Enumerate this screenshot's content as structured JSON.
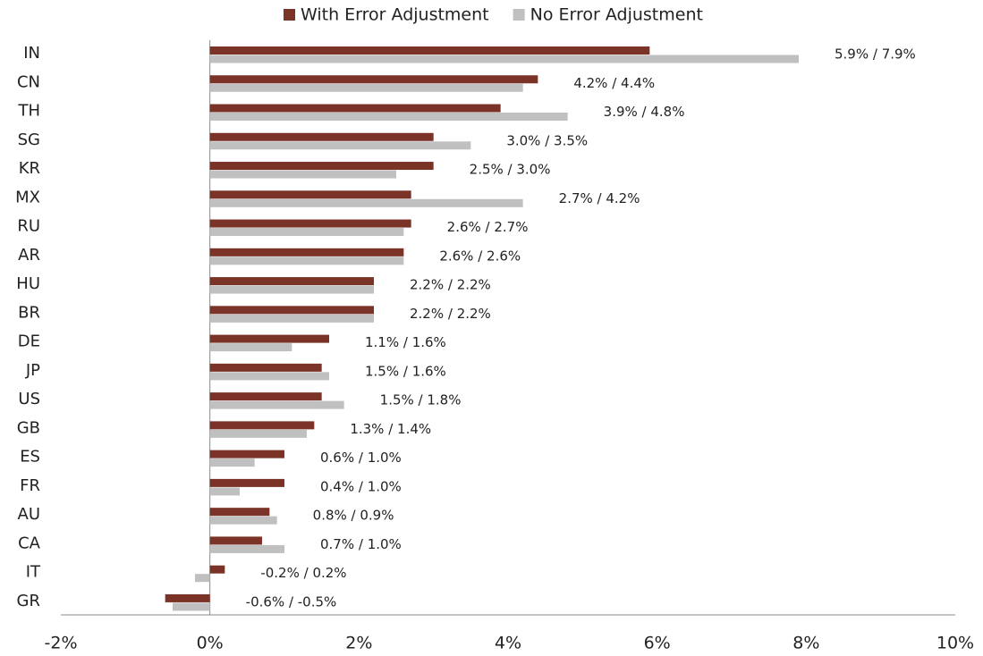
{
  "chart_data": {
    "type": "hbar",
    "categories": [
      "IN",
      "CN",
      "TH",
      "SG",
      "KR",
      "MX",
      "RU",
      "AR",
      "HU",
      "BR",
      "DE",
      "JP",
      "US",
      "GB",
      "ES",
      "FR",
      "AU",
      "CA",
      "IT",
      "GR"
    ],
    "series": [
      {
        "name": "With Error Adjustment",
        "color": "#7b3328",
        "values": [
          5.9,
          4.4,
          3.9,
          3.0,
          3.0,
          2.7,
          2.7,
          2.6,
          2.2,
          2.2,
          1.6,
          1.5,
          1.5,
          1.4,
          1.0,
          1.0,
          0.8,
          0.7,
          0.2,
          -0.6
        ]
      },
      {
        "name": "No Error Adjustment",
        "color": "#c0c0c0",
        "values": [
          7.9,
          4.2,
          4.8,
          3.5,
          2.5,
          4.2,
          2.6,
          2.6,
          2.2,
          2.2,
          1.1,
          1.6,
          1.8,
          1.3,
          0.6,
          0.4,
          0.9,
          1.0,
          -0.2,
          -0.5
        ]
      }
    ],
    "bar_labels": [
      "5.9% / 7.9%",
      "4.2% / 4.4%",
      "3.9% / 4.8%",
      "3.0% / 3.5%",
      "2.5% / 3.0%",
      "2.7% / 4.2%",
      "2.6% / 2.7%",
      "2.6% / 2.6%",
      "2.2% / 2.2%",
      "2.2% / 2.2%",
      "1.1% / 1.6%",
      "1.5% / 1.6%",
      "1.5% / 1.8%",
      "1.3% / 1.4%",
      "0.6% / 1.0%",
      "0.4% / 1.0%",
      "0.8% / 0.9%",
      "0.7% / 1.0%",
      "-0.2% / 0.2%",
      "-0.6% / -0.5%"
    ],
    "xlim": [
      -2,
      10
    ],
    "xticks": [
      {
        "value": -2,
        "label": "-2%"
      },
      {
        "value": 0,
        "label": "0%"
      },
      {
        "value": 2,
        "label": "2%"
      },
      {
        "value": 4,
        "label": "4%"
      },
      {
        "value": 6,
        "label": "6%"
      },
      {
        "value": 8,
        "label": "8%"
      },
      {
        "value": 10,
        "label": "10%"
      }
    ],
    "legend": "top",
    "grid": false
  }
}
